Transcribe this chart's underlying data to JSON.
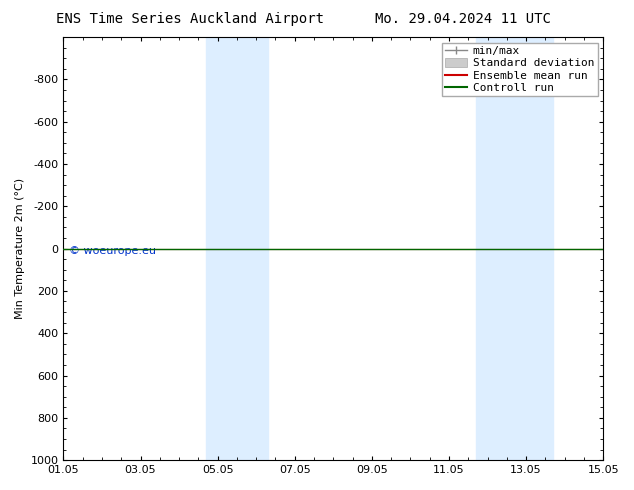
{
  "title_left": "ENS Time Series Auckland Airport",
  "title_right": "Mo. 29.04.2024 11 UTC",
  "ylabel": "Min Temperature 2m (°C)",
  "ylim_top": -1000,
  "ylim_bottom": 1000,
  "yticks": [
    -800,
    -600,
    -400,
    -200,
    0,
    200,
    400,
    600,
    800,
    1000
  ],
  "xtick_labels": [
    "01.05",
    "03.05",
    "05.05",
    "07.05",
    "09.05",
    "11.05",
    "13.05",
    "15.05"
  ],
  "xtick_positions": [
    0,
    2,
    4,
    6,
    8,
    10,
    12,
    14
  ],
  "background_color": "#ffffff",
  "plot_bg_color": "#ffffff",
  "shaded_bands": [
    {
      "start": 3.7,
      "end": 5.3,
      "color": "#ddeeff"
    },
    {
      "start": 10.7,
      "end": 12.7,
      "color": "#ddeeff"
    }
  ],
  "line_y": 0,
  "control_run_color": "#006600",
  "ensemble_mean_color": "#cc0000",
  "min_max_color": "#888888",
  "std_dev_color": "#cccccc",
  "watermark": "© woeurope.eu",
  "watermark_color": "#0033cc",
  "legend_labels": [
    "min/max",
    "Standard deviation",
    "Ensemble mean run",
    "Controll run"
  ],
  "legend_colors": [
    "#888888",
    "#cccccc",
    "#cc0000",
    "#006600"
  ],
  "title_fontsize": 10,
  "axis_fontsize": 8,
  "tick_fontsize": 8,
  "legend_fontsize": 8
}
